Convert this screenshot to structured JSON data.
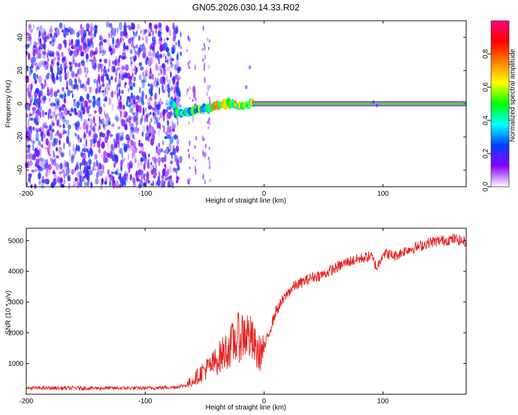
{
  "chart_data": [
    {
      "type": "heatmap",
      "title": "GN05.2026.030.14.33.R02",
      "xlabel": "Height of straight line (km)",
      "ylabel": "Frequency (Hz)",
      "xlim": [
        -200,
        170
      ],
      "ylim": [
        -50,
        50
      ],
      "x_ticks": [
        -200,
        -100,
        0,
        100
      ],
      "y_ticks": [
        -40,
        -20,
        0,
        20,
        40
      ],
      "colorbar": {
        "label": "Normalized spectral amplitude",
        "range": [
          0.0,
          1.0
        ],
        "ticks": [
          0.0,
          0.2,
          0.4,
          0.6,
          0.8
        ],
        "tick_labels": [
          "0.0",
          "0.2",
          "0.4",
          "0.6",
          "0.8"
        ],
        "colors": [
          "#ffffff",
          "#8a00ff",
          "#0040ff",
          "#00ffff",
          "#00ff00",
          "#ffff00",
          "#ff8000",
          "#ff0000",
          "#ff0080"
        ]
      },
      "regions": [
        {
          "name": "noise",
          "x_range": [
            -200,
            -70
          ],
          "freq_range": [
            -50,
            48
          ],
          "amplitude": 0.1
        },
        {
          "name": "signal onset",
          "x": [
            -75,
            -60,
            -50,
            -40,
            -30,
            -20,
            -10,
            0,
            170
          ],
          "freq": [
            -6,
            -4,
            -3,
            -1,
            0,
            -2,
            0,
            0,
            0
          ]
        },
        {
          "name": "carrier line",
          "x_range": [
            -10,
            170
          ],
          "freq": 0,
          "amplitude": 0.85
        }
      ]
    },
    {
      "type": "line",
      "xlabel": "Height of straight line (km)",
      "ylabel": "SNR (10 * v/v)",
      "xlim": [
        -200,
        170
      ],
      "ylim": [
        0,
        5400
      ],
      "x_ticks": [
        -200,
        -100,
        0,
        100
      ],
      "y_ticks": [
        1000,
        2000,
        3000,
        4000,
        5000
      ],
      "color": "#e8201c",
      "series": [
        {
          "name": "SNR",
          "x": [
            -200,
            -150,
            -100,
            -75,
            -65,
            -60,
            -50,
            -45,
            -40,
            -35,
            -30,
            -25,
            -20,
            -15,
            -10,
            -5,
            0,
            5,
            10,
            15,
            20,
            25,
            30,
            40,
            50,
            60,
            70,
            80,
            90,
            95,
            100,
            110,
            120,
            130,
            140,
            150,
            160,
            170
          ],
          "values": [
            200,
            200,
            200,
            230,
            300,
            450,
            800,
            900,
            1100,
            1300,
            1500,
            1700,
            1900,
            2000,
            1700,
            1300,
            1500,
            2100,
            2700,
            3000,
            3300,
            3500,
            3600,
            3800,
            3900,
            4100,
            4300,
            4400,
            4500,
            4100,
            4600,
            4500,
            4700,
            4800,
            4950,
            5000,
            5050,
            4950
          ]
        }
      ]
    }
  ]
}
